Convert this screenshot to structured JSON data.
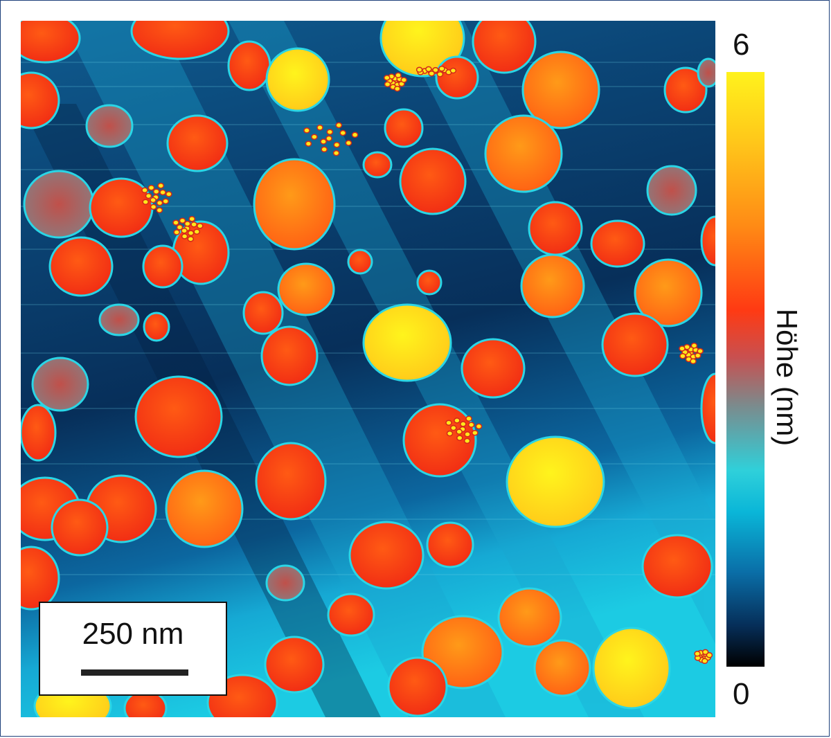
{
  "scale_bar": {
    "label": "250 nm"
  },
  "colorbar": {
    "title": "Höhe (nm)",
    "max_label": "6",
    "min_label": "0",
    "colors": [
      "#fff21c",
      "#ffc61a",
      "#ff8a15",
      "#ff3a13",
      "#7c8a8c",
      "#2fd0da",
      "#0a6fa8",
      "#000000"
    ]
  },
  "image_description_colors": {
    "background_light": "#1cc6df",
    "background_dark": "#06315e",
    "particle_red": "#ff3214",
    "particle_orange": "#ff7a12",
    "particle_yellow": "#ffe81a",
    "particle_rim": "#2ad6e6"
  }
}
